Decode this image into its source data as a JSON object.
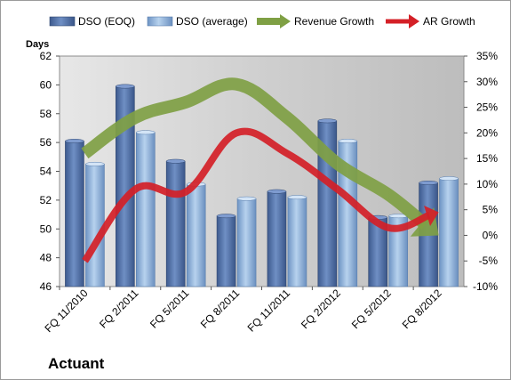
{
  "caption": "Actuant",
  "chart_data": {
    "type": "bar",
    "categories": [
      "FQ 11/2010",
      "FQ 2/2011",
      "FQ 5/2011",
      "FQ 8/2011",
      "FQ 11/2011",
      "FQ 2/2012",
      "FQ 5/2012",
      "FQ 8/2012"
    ],
    "ylabel": "Days",
    "ylim": [
      46,
      62
    ],
    "yticks": [
      46,
      48,
      50,
      52,
      54,
      56,
      58,
      60,
      62
    ],
    "y2lim": [
      -10,
      35
    ],
    "y2ticks": [
      "-10%",
      "-5%",
      "0%",
      "5%",
      "10%",
      "15%",
      "20%",
      "25%",
      "30%",
      "35%"
    ],
    "y2ticks_values": [
      -10,
      -5,
      0,
      5,
      10,
      15,
      20,
      25,
      30,
      35
    ],
    "legend_position": "top",
    "grid": false,
    "series": [
      {
        "name": "DSO (EOQ)",
        "kind": "bar",
        "axis": "left",
        "color": "#4f6fa6",
        "values": [
          56.1,
          59.9,
          54.7,
          50.9,
          52.6,
          57.5,
          50.8,
          53.2
        ]
      },
      {
        "name": "DSO (average)",
        "kind": "bar",
        "axis": "left",
        "color": "#88aed8",
        "values": [
          54.5,
          56.7,
          53.1,
          52.1,
          52.2,
          56.1,
          50.9,
          53.5
        ]
      },
      {
        "name": "Revenue Growth",
        "kind": "arrow-line",
        "axis": "right",
        "color": "#7fa044",
        "values": [
          16,
          23,
          26,
          29.5,
          23,
          14,
          8,
          0
        ]
      },
      {
        "name": "AR Growth",
        "kind": "arrow-line",
        "axis": "right",
        "color": "#d42027",
        "values": [
          -5,
          9,
          8.5,
          20,
          16,
          9,
          1.5,
          4.5
        ]
      }
    ]
  }
}
